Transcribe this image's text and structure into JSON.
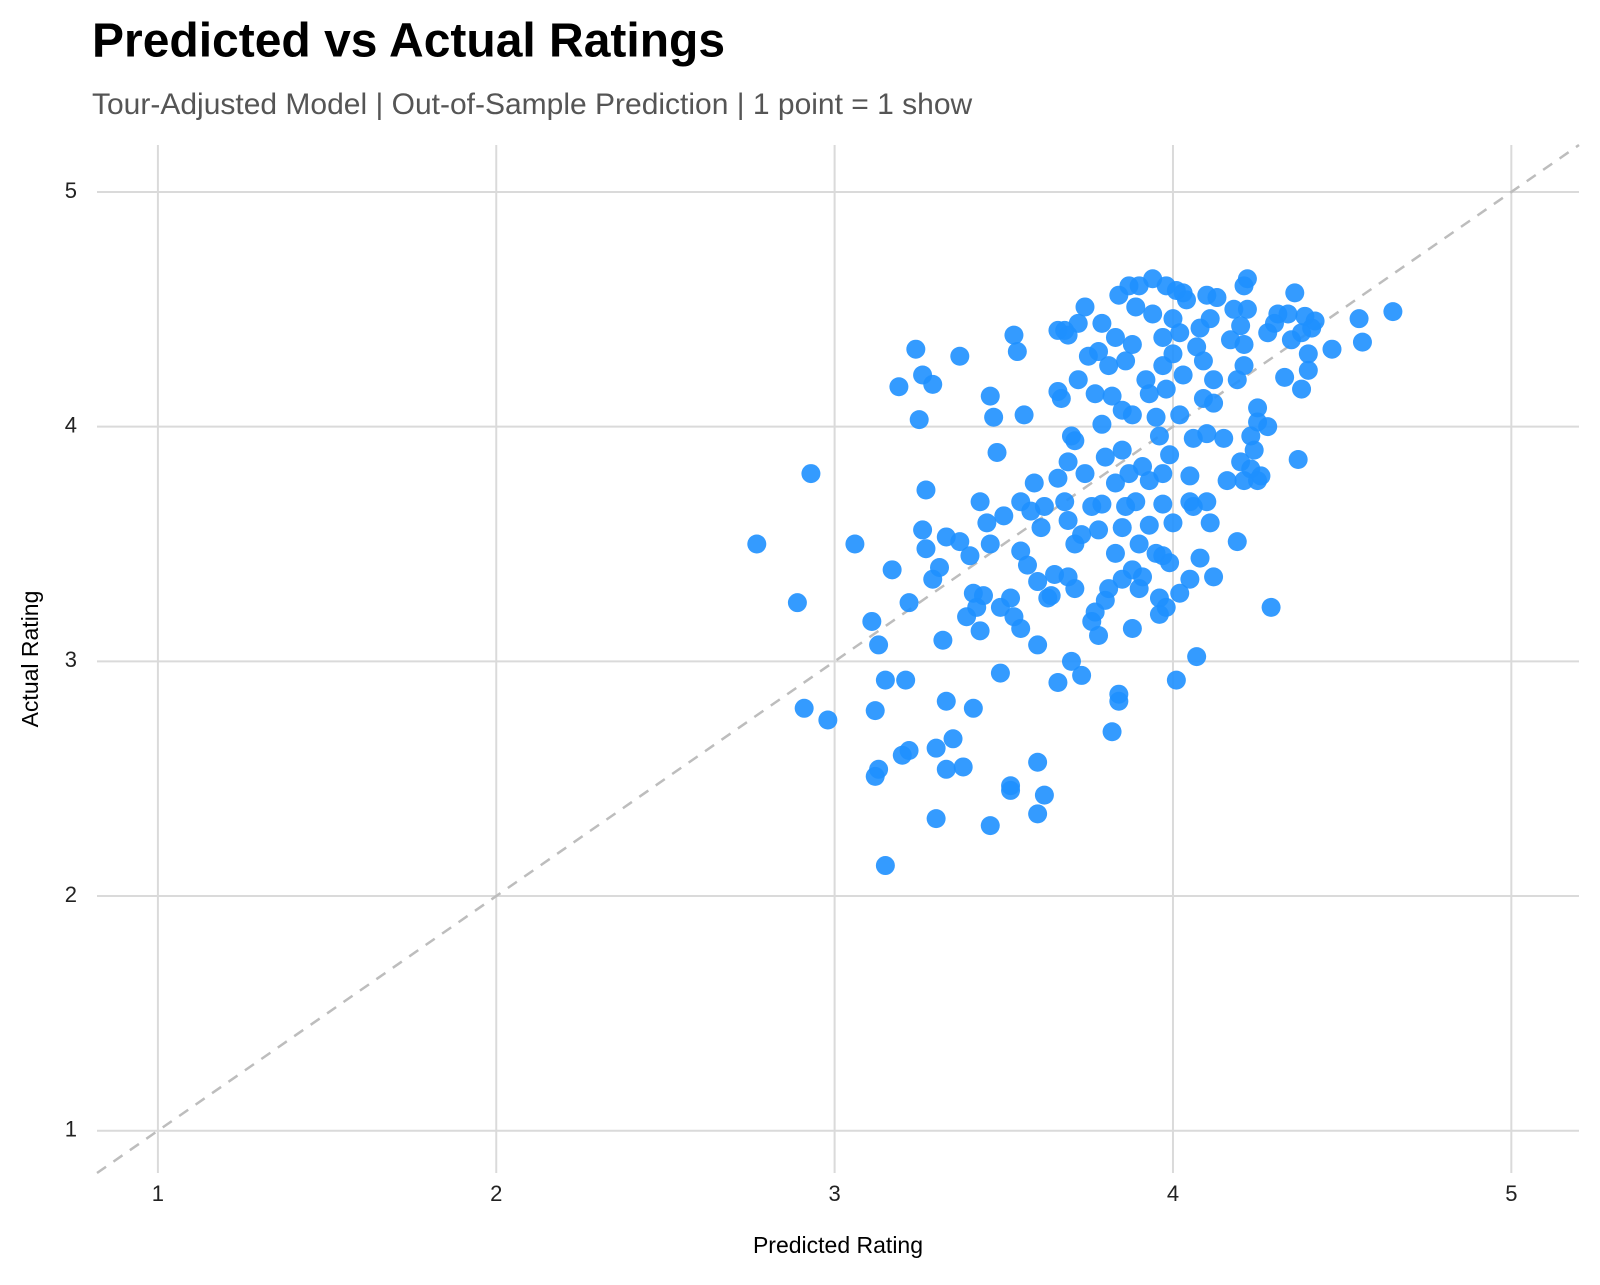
{
  "chart_data": {
    "type": "scatter",
    "title": "Predicted vs Actual Ratings",
    "subtitle": "Tour-Adjusted Model | Out-of-Sample Prediction | 1 point = 1 show",
    "x_label": "Predicted Rating",
    "y_label": "Actual Rating",
    "xlim": [
      0.82,
      5.2
    ],
    "ylim": [
      0.82,
      5.2
    ],
    "xticks": [
      1,
      2,
      3,
      4,
      5
    ],
    "yticks": [
      1,
      2,
      3,
      4,
      5
    ],
    "grid": true,
    "color": "#1e90ff",
    "x": [
      2.77,
      2.93,
      2.89,
      2.91,
      2.98,
      3.06,
      3.15,
      3.12,
      3.13,
      3.12,
      3.11,
      3.13,
      3.15,
      3.21,
      3.17,
      3.19,
      3.22,
      3.2,
      3.22,
      3.24,
      3.25,
      3.26,
      3.29,
      3.26,
      3.27,
      3.27,
      3.29,
      3.31,
      3.32,
      3.33,
      3.3,
      3.3,
      3.33,
      3.35,
      3.38,
      3.33,
      3.37,
      3.37,
      3.39,
      3.4,
      3.41,
      3.41,
      3.42,
      3.43,
      3.43,
      3.44,
      3.45,
      3.46,
      3.46,
      3.47,
      3.48,
      3.49,
      3.49,
      3.46,
      3.52,
      3.52,
      3.5,
      3.53,
      3.54,
      3.52,
      3.53,
      3.55,
      3.55,
      3.56,
      3.55,
      3.57,
      3.58,
      3.59,
      3.6,
      3.6,
      3.6,
      3.62,
      3.61,
      3.62,
      3.6,
      3.63,
      3.64,
      3.65,
      3.66,
      3.66,
      3.66,
      3.66,
      3.67,
      3.68,
      3.69,
      3.68,
      3.69,
      3.7,
      3.69,
      3.71,
      3.69,
      3.7,
      3.71,
      3.71,
      3.72,
      3.73,
      3.72,
      3.73,
      3.74,
      3.75,
      3.74,
      3.76,
      3.76,
      3.77,
      3.77,
      3.78,
      3.78,
      3.78,
      3.79,
      3.79,
      3.8,
      3.79,
      3.8,
      3.81,
      3.81,
      3.82,
      3.82,
      3.83,
      3.83,
      3.83,
      3.84,
      3.84,
      3.84,
      3.85,
      3.85,
      3.85,
      3.85,
      3.86,
      3.86,
      3.87,
      3.87,
      3.88,
      3.88,
      3.88,
      3.88,
      3.89,
      3.89,
      3.9,
      3.9,
      3.9,
      3.91,
      3.91,
      3.92,
      3.93,
      3.93,
      3.93,
      3.94,
      3.94,
      3.95,
      3.96,
      3.95,
      3.96,
      3.96,
      3.97,
      3.97,
      3.97,
      3.97,
      3.97,
      3.98,
      3.98,
      3.98,
      3.99,
      3.99,
      4.0,
      4.0,
      4.0,
      4.01,
      4.01,
      4.02,
      4.02,
      4.02,
      4.03,
      4.03,
      4.04,
      4.05,
      4.05,
      4.05,
      4.06,
      4.06,
      4.07,
      4.07,
      4.08,
      4.08,
      4.09,
      4.09,
      4.1,
      4.1,
      4.1,
      4.11,
      4.11,
      4.12,
      4.12,
      4.12,
      4.13,
      4.15,
      4.16,
      4.17,
      4.18,
      4.19,
      4.19,
      4.2,
      4.2,
      4.21,
      4.21,
      4.21,
      4.21,
      4.22,
      4.22,
      4.23,
      4.23,
      4.24,
      4.25,
      4.25,
      4.25,
      4.26,
      4.28,
      4.28,
      4.29,
      4.3,
      4.31,
      4.33,
      4.34,
      4.35,
      4.36,
      4.37,
      4.38,
      4.38,
      4.39,
      4.4,
      4.4,
      4.41,
      4.42,
      4.47,
      4.55,
      4.56,
      4.65
    ],
    "values": [
      3.5,
      3.8,
      3.25,
      2.8,
      2.75,
      3.5,
      2.13,
      2.51,
      2.54,
      2.79,
      3.17,
      3.07,
      2.92,
      2.92,
      3.39,
      4.17,
      3.25,
      2.6,
      2.62,
      4.33,
      4.03,
      4.22,
      4.18,
      3.56,
      3.48,
      3.73,
      3.35,
      3.4,
      3.09,
      2.83,
      2.63,
      2.33,
      2.54,
      2.67,
      2.55,
      3.53,
      4.3,
      3.51,
      3.19,
      3.45,
      3.29,
      2.8,
      3.23,
      3.13,
      3.68,
      3.28,
      3.59,
      4.13,
      3.5,
      4.04,
      3.89,
      3.23,
      2.95,
      2.3,
      2.47,
      2.45,
      3.62,
      4.39,
      4.32,
      3.27,
      3.19,
      3.68,
      3.47,
      4.05,
      3.14,
      3.41,
      3.64,
      3.76,
      3.07,
      2.57,
      2.35,
      2.43,
      3.57,
      3.66,
      3.34,
      3.27,
      3.28,
      3.37,
      2.91,
      3.78,
      4.15,
      4.41,
      4.12,
      4.41,
      4.39,
      3.68,
      3.85,
      3.0,
      3.36,
      3.31,
      3.6,
      3.96,
      3.94,
      3.5,
      4.2,
      2.94,
      4.44,
      3.54,
      4.51,
      4.3,
      3.8,
      3.17,
      3.66,
      4.14,
      3.21,
      3.56,
      4.32,
      3.11,
      4.01,
      4.44,
      3.26,
      3.67,
      3.87,
      3.31,
      4.26,
      2.7,
      4.13,
      3.46,
      3.76,
      4.38,
      4.56,
      2.86,
      2.83,
      3.35,
      3.57,
      3.9,
      4.07,
      4.28,
      3.66,
      4.6,
      3.8,
      3.14,
      3.39,
      4.05,
      4.35,
      3.68,
      4.51,
      3.5,
      3.31,
      4.6,
      3.83,
      3.36,
      4.2,
      3.58,
      4.14,
      3.77,
      4.63,
      4.48,
      4.04,
      3.96,
      3.46,
      3.2,
      3.27,
      3.67,
      4.26,
      3.45,
      3.8,
      4.38,
      4.6,
      4.16,
      3.23,
      3.88,
      3.42,
      3.59,
      4.31,
      4.46,
      4.58,
      2.92,
      3.29,
      4.05,
      4.4,
      4.57,
      4.22,
      4.54,
      3.79,
      3.68,
      3.35,
      3.66,
      3.95,
      3.02,
      4.34,
      3.44,
      4.42,
      4.28,
      4.12,
      3.68,
      3.97,
      4.56,
      4.46,
      3.59,
      4.2,
      4.1,
      3.36,
      4.55,
      3.95,
      3.77,
      4.37,
      4.5,
      4.2,
      3.51,
      3.85,
      4.43,
      4.35,
      3.77,
      4.26,
      4.6,
      4.63,
      4.5,
      3.96,
      3.82,
      3.9,
      3.77,
      4.08,
      4.02,
      3.79,
      4.0,
      4.4,
      3.23,
      4.44,
      4.48,
      4.21,
      4.48,
      4.37,
      4.57,
      3.86,
      4.16,
      4.4,
      4.47,
      4.31,
      4.24,
      4.42,
      4.45,
      4.33,
      4.46,
      4.36,
      4.49
    ]
  }
}
